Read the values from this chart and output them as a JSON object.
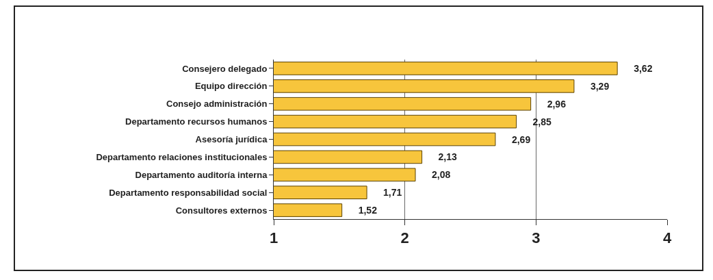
{
  "chart_data": {
    "type": "bar",
    "orientation": "horizontal",
    "categories": [
      "Consejero delegado",
      "Equipo dirección",
      "Consejo administración",
      "Departamento recursos humanos",
      "Asesoría jurídica",
      "Departamento relaciones institucionales",
      "Departamento auditoría interna",
      "Departamento responsabilidad social",
      "Consultores externos"
    ],
    "values": [
      3.62,
      3.29,
      2.96,
      2.85,
      2.69,
      2.13,
      2.08,
      1.71,
      1.52
    ],
    "value_labels": [
      "3,62",
      "3,29",
      "2,96",
      "2,85",
      "2,69",
      "2,13",
      "2,08",
      "1,71",
      "1,52"
    ],
    "color": "#f7c53c",
    "xlim": [
      1,
      4
    ],
    "xticks": [
      1,
      2,
      3,
      4
    ],
    "grid": "x"
  }
}
